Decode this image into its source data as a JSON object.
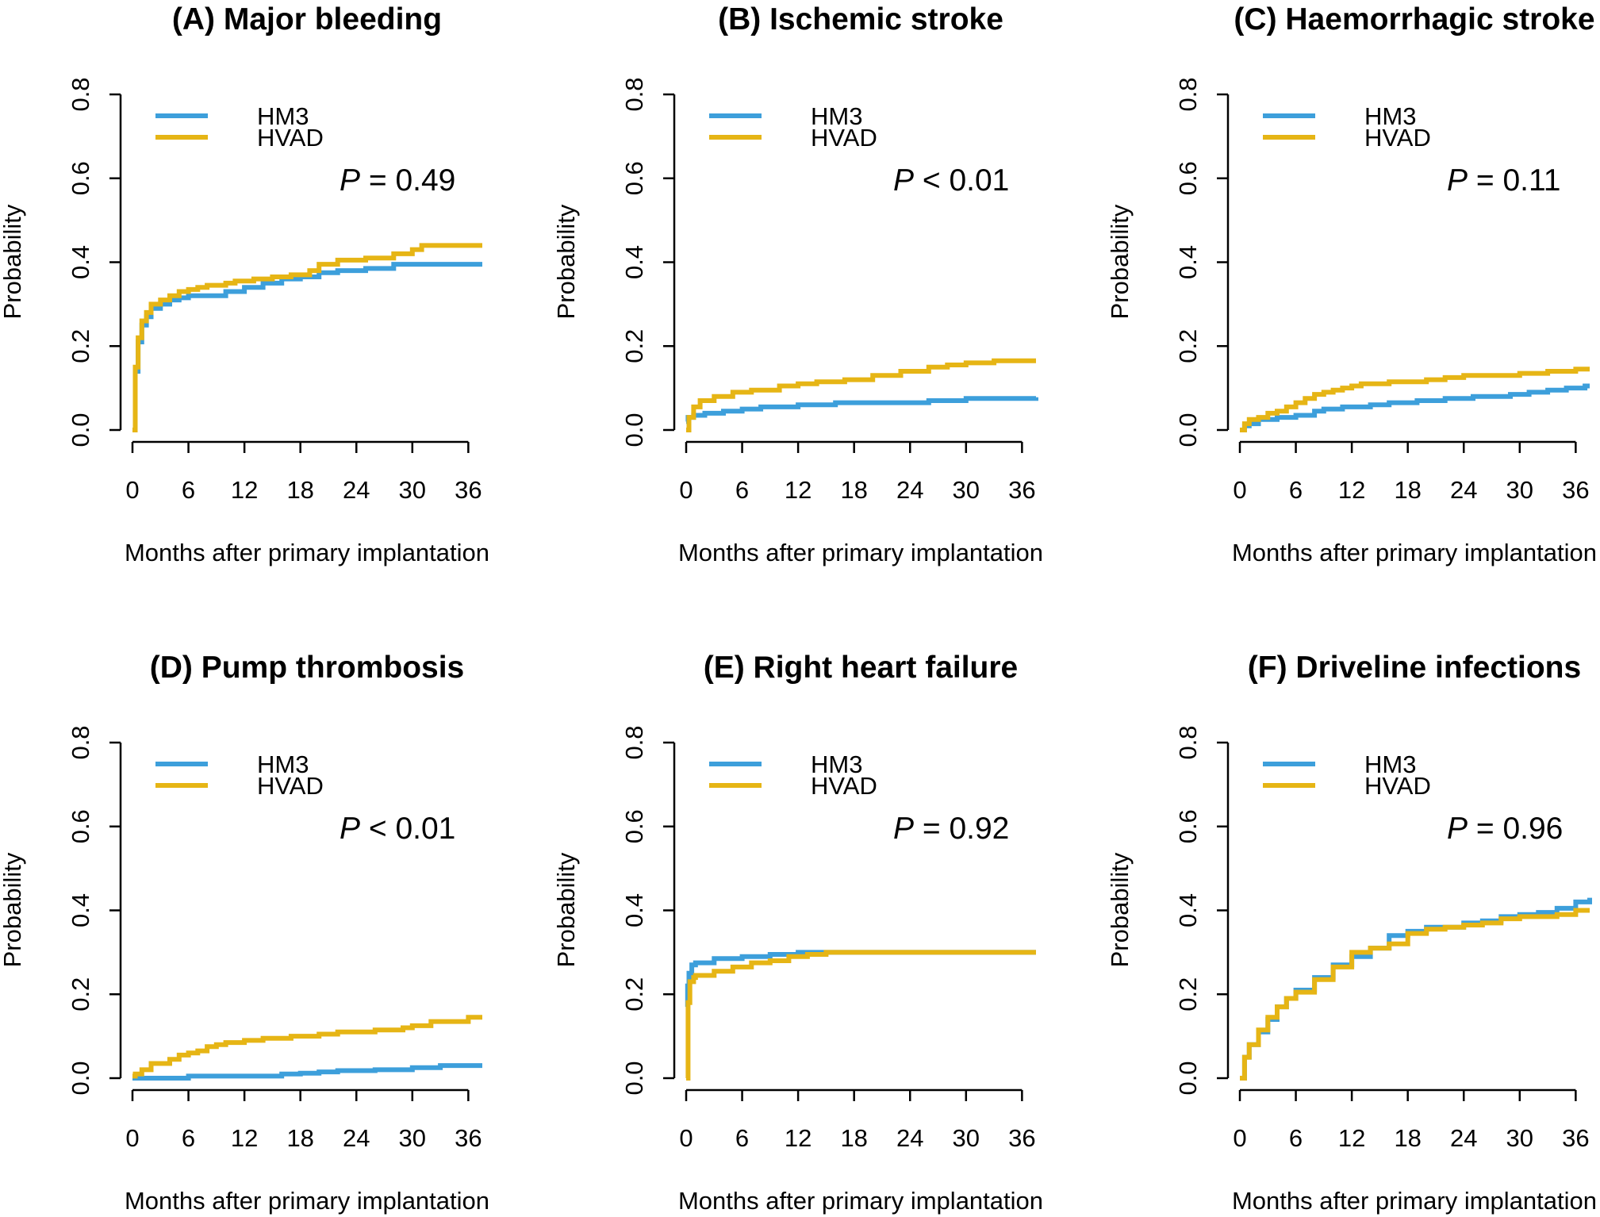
{
  "colors": {
    "HM3": "#3d9fdb",
    "HVAD": "#e6b515"
  },
  "chart_data": [
    {
      "type": "line",
      "step": true,
      "title": "(A) Major bleeding",
      "xlabel": "Months after primary implantation",
      "ylabel": "Probability",
      "xlim": [
        0,
        37.5
      ],
      "ylim": [
        0,
        0.8
      ],
      "xticks": [
        "0",
        "6",
        "12",
        "18",
        "24",
        "30",
        "36"
      ],
      "yticks": [
        "0.0",
        "0.2",
        "0.4",
        "0.6",
        "0.8"
      ],
      "legend": {
        "position": "top-left",
        "entries": [
          "HM3",
          "HVAD"
        ]
      },
      "p_label": "P",
      "p_text": " = 0.49",
      "series": [
        {
          "name": "HM3",
          "x": [
            0,
            0.3,
            0.6,
            1,
            1.5,
            2,
            3,
            4,
            5,
            6,
            8,
            10,
            12,
            14,
            16,
            18,
            20,
            22,
            25,
            27,
            28,
            30,
            37.5
          ],
          "y": [
            0,
            0.14,
            0.21,
            0.25,
            0.27,
            0.29,
            0.3,
            0.31,
            0.315,
            0.32,
            0.32,
            0.33,
            0.34,
            0.35,
            0.36,
            0.365,
            0.375,
            0.38,
            0.385,
            0.385,
            0.395,
            0.395,
            0.395
          ]
        },
        {
          "name": "HVAD",
          "x": [
            0,
            0.3,
            0.6,
            1,
            1.5,
            2,
            3,
            4,
            5,
            6,
            7,
            8,
            10,
            11,
            13,
            15,
            17,
            19,
            20,
            22,
            25,
            28,
            30,
            31,
            37.5
          ],
          "y": [
            0,
            0.15,
            0.22,
            0.26,
            0.28,
            0.3,
            0.31,
            0.32,
            0.33,
            0.335,
            0.34,
            0.345,
            0.35,
            0.355,
            0.36,
            0.365,
            0.37,
            0.38,
            0.395,
            0.405,
            0.41,
            0.42,
            0.43,
            0.44,
            0.44
          ]
        }
      ]
    },
    {
      "type": "line",
      "step": true,
      "title": "(B) Ischemic stroke",
      "xlabel": "Months after primary implantation",
      "ylabel": "Probability",
      "xlim": [
        0,
        37.5
      ],
      "ylim": [
        0,
        0.8
      ],
      "xticks": [
        "0",
        "6",
        "12",
        "18",
        "24",
        "30",
        "36"
      ],
      "yticks": [
        "0.0",
        "0.2",
        "0.4",
        "0.6",
        "0.8"
      ],
      "legend": {
        "position": "top-left",
        "entries": [
          "HM3",
          "HVAD"
        ]
      },
      "p_label": "P",
      "p_text": " < 0.01",
      "series": [
        {
          "name": "HM3",
          "x": [
            0,
            0.2,
            0.8,
            2,
            4,
            6,
            8,
            12,
            16,
            20,
            26,
            30,
            37.5
          ],
          "y": [
            0.02,
            0.03,
            0.035,
            0.04,
            0.045,
            0.05,
            0.055,
            0.06,
            0.065,
            0.065,
            0.07,
            0.075,
            0.078
          ]
        },
        {
          "name": "HVAD",
          "x": [
            0,
            0.3,
            0.8,
            1.5,
            3,
            5,
            7,
            10,
            12,
            14,
            17,
            20,
            23,
            26,
            28,
            30,
            33,
            37.5
          ],
          "y": [
            0,
            0.03,
            0.055,
            0.07,
            0.08,
            0.09,
            0.095,
            0.105,
            0.11,
            0.115,
            0.12,
            0.13,
            0.14,
            0.15,
            0.155,
            0.16,
            0.165,
            0.165
          ]
        }
      ]
    },
    {
      "type": "line",
      "step": true,
      "title": "(C) Haemorrhagic stroke",
      "xlabel": "Months after primary implantation",
      "ylabel": "Probability",
      "xlim": [
        0,
        37.5
      ],
      "ylim": [
        0,
        0.8
      ],
      "xticks": [
        "0",
        "6",
        "12",
        "18",
        "24",
        "30",
        "36"
      ],
      "yticks": [
        "0.0",
        "0.2",
        "0.4",
        "0.6",
        "0.8"
      ],
      "legend": {
        "position": "top-left",
        "entries": [
          "HM3",
          "HVAD"
        ]
      },
      "p_label": "P",
      "p_text": " = 0.11",
      "series": [
        {
          "name": "HM3",
          "x": [
            0,
            0.5,
            1,
            2,
            4,
            6,
            8,
            9,
            11,
            14,
            16,
            19,
            22,
            25,
            27,
            29,
            31,
            33,
            35,
            37,
            37.5
          ],
          "y": [
            0,
            0.01,
            0.015,
            0.025,
            0.03,
            0.035,
            0.045,
            0.05,
            0.055,
            0.06,
            0.065,
            0.07,
            0.075,
            0.08,
            0.08,
            0.085,
            0.09,
            0.095,
            0.1,
            0.105,
            0.105
          ]
        },
        {
          "name": "HVAD",
          "x": [
            0,
            0.5,
            1,
            2,
            3,
            4,
            5,
            6,
            7,
            8,
            9,
            10,
            11,
            12,
            13,
            16,
            18,
            20,
            22,
            24,
            27,
            30,
            33,
            36,
            37.5
          ],
          "y": [
            0,
            0.015,
            0.025,
            0.03,
            0.04,
            0.045,
            0.055,
            0.065,
            0.075,
            0.085,
            0.09,
            0.095,
            0.1,
            0.105,
            0.11,
            0.115,
            0.115,
            0.12,
            0.125,
            0.13,
            0.13,
            0.135,
            0.14,
            0.145,
            0.145
          ]
        }
      ]
    },
    {
      "type": "line",
      "step": true,
      "title": "(D) Pump thrombosis",
      "xlabel": "Months after primary implantation",
      "ylabel": "Probability",
      "xlim": [
        0,
        37.5
      ],
      "ylim": [
        0,
        0.8
      ],
      "xticks": [
        "0",
        "6",
        "12",
        "18",
        "24",
        "30",
        "36"
      ],
      "yticks": [
        "0.0",
        "0.2",
        "0.4",
        "0.6",
        "0.8"
      ],
      "legend": {
        "position": "top-left",
        "entries": [
          "HM3",
          "HVAD"
        ]
      },
      "p_label": "P",
      "p_text": " < 0.01",
      "series": [
        {
          "name": "HM3",
          "x": [
            0,
            6,
            12,
            16,
            18,
            20,
            22,
            26,
            30,
            33,
            37.5
          ],
          "y": [
            0,
            0.005,
            0.005,
            0.01,
            0.012,
            0.015,
            0.018,
            0.02,
            0.025,
            0.03,
            0.03
          ]
        },
        {
          "name": "HVAD",
          "x": [
            0,
            0.3,
            1,
            2,
            4,
            5,
            6,
            7,
            8,
            9,
            10,
            12,
            14,
            17,
            20,
            22,
            26,
            29,
            30,
            32,
            36,
            37.5
          ],
          "y": [
            0.005,
            0.01,
            0.02,
            0.035,
            0.045,
            0.055,
            0.06,
            0.065,
            0.075,
            0.08,
            0.085,
            0.09,
            0.095,
            0.1,
            0.105,
            0.11,
            0.115,
            0.12,
            0.125,
            0.135,
            0.145,
            0.145
          ]
        }
      ]
    },
    {
      "type": "line",
      "step": true,
      "title": "(E) Right heart failure",
      "xlabel": "Months after primary implantation",
      "ylabel": "Probability",
      "xlim": [
        0,
        37.5
      ],
      "ylim": [
        0,
        0.8
      ],
      "xticks": [
        "0",
        "6",
        "12",
        "18",
        "24",
        "30",
        "36"
      ],
      "yticks": [
        "0.0",
        "0.2",
        "0.4",
        "0.6",
        "0.8"
      ],
      "legend": {
        "position": "top-left",
        "entries": [
          "HM3",
          "HVAD"
        ]
      },
      "p_label": "P",
      "p_text": " = 0.92",
      "series": [
        {
          "name": "HM3",
          "x": [
            0,
            0.15,
            0.3,
            0.6,
            1,
            3,
            6,
            9,
            12,
            30,
            37.5
          ],
          "y": [
            0.17,
            0.22,
            0.25,
            0.27,
            0.275,
            0.285,
            0.29,
            0.295,
            0.3,
            0.3,
            0.3
          ]
        },
        {
          "name": "HVAD",
          "x": [
            0,
            0.2,
            0.4,
            0.8,
            1,
            3,
            5,
            7,
            9,
            11,
            13,
            15,
            37.5
          ],
          "y": [
            0,
            0.18,
            0.23,
            0.24,
            0.245,
            0.255,
            0.265,
            0.275,
            0.28,
            0.29,
            0.295,
            0.3,
            0.3
          ]
        }
      ]
    },
    {
      "type": "line",
      "step": true,
      "title": "(F) Driveline infections",
      "xlabel": "Months after primary implantation",
      "ylabel": "Probability",
      "xlim": [
        0,
        37.5
      ],
      "ylim": [
        0,
        0.8
      ],
      "xticks": [
        "0",
        "6",
        "12",
        "18",
        "24",
        "30",
        "36"
      ],
      "yticks": [
        "0.0",
        "0.2",
        "0.4",
        "0.6",
        "0.8"
      ],
      "legend": {
        "position": "top-left",
        "entries": [
          "HM3",
          "HVAD"
        ]
      },
      "p_label": "P",
      "p_text": " = 0.96",
      "series": [
        {
          "name": "HM3",
          "x": [
            0,
            0.5,
            1,
            2,
            3,
            4,
            5,
            6,
            8,
            10,
            12,
            14,
            16,
            18,
            20,
            22,
            24,
            26,
            28,
            30,
            32,
            34,
            36,
            37.5
          ],
          "y": [
            0,
            0.05,
            0.08,
            0.11,
            0.14,
            0.17,
            0.19,
            0.21,
            0.24,
            0.27,
            0.29,
            0.31,
            0.34,
            0.35,
            0.36,
            0.36,
            0.37,
            0.375,
            0.385,
            0.39,
            0.395,
            0.405,
            0.42,
            0.43
          ]
        },
        {
          "name": "HVAD",
          "x": [
            0,
            0.5,
            1,
            2,
            3,
            4,
            5,
            6,
            8,
            10,
            12,
            14,
            16,
            18,
            20,
            22,
            24,
            26,
            28,
            30,
            32,
            34,
            36,
            37.5
          ],
          "y": [
            0,
            0.05,
            0.08,
            0.115,
            0.145,
            0.17,
            0.19,
            0.205,
            0.235,
            0.265,
            0.3,
            0.31,
            0.32,
            0.345,
            0.355,
            0.36,
            0.365,
            0.37,
            0.38,
            0.385,
            0.385,
            0.39,
            0.4,
            0.4
          ]
        }
      ]
    }
  ]
}
